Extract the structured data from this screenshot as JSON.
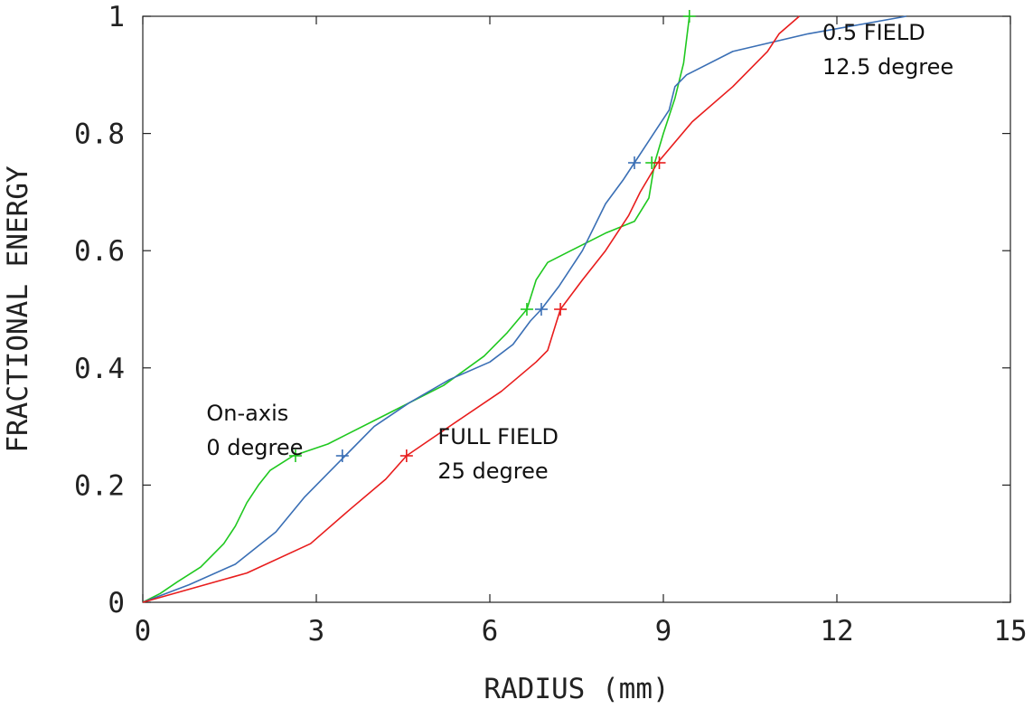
{
  "chart_data": {
    "type": "line",
    "title": "",
    "xlabel": "RADIUS (mm)",
    "ylabel": "FRACTIONAL ENERGY",
    "xlim": [
      0,
      15
    ],
    "ylim": [
      0,
      1
    ],
    "xticks": [
      0,
      3,
      6,
      9,
      12,
      15
    ],
    "xtick_labels": [
      "0",
      "3",
      "6",
      "9",
      "12",
      "15"
    ],
    "yticks": [
      0,
      0.2,
      0.4,
      0.6,
      0.8,
      1
    ],
    "ytick_labels": [
      "0",
      "0.2",
      "0.4",
      "0.6",
      "0.8",
      "1"
    ],
    "grid": false,
    "series": [
      {
        "color": "#1fc81f",
        "points": [
          [
            0,
            0
          ],
          [
            0.3,
            0.015
          ],
          [
            0.6,
            0.035
          ],
          [
            1,
            0.06
          ],
          [
            1.4,
            0.1
          ],
          [
            1.6,
            0.13
          ],
          [
            1.8,
            0.17
          ],
          [
            2.0,
            0.2
          ],
          [
            2.2,
            0.225
          ],
          [
            2.6,
            0.25
          ],
          [
            3.2,
            0.27
          ],
          [
            4.2,
            0.32
          ],
          [
            5.2,
            0.37
          ],
          [
            5.9,
            0.42
          ],
          [
            6.3,
            0.46
          ],
          [
            6.64,
            0.5
          ],
          [
            6.8,
            0.55
          ],
          [
            7.0,
            0.58
          ],
          [
            7.4,
            0.6
          ],
          [
            8.0,
            0.63
          ],
          [
            8.5,
            0.65
          ],
          [
            8.75,
            0.69
          ],
          [
            8.85,
            0.75
          ],
          [
            9.0,
            0.8
          ],
          [
            9.2,
            0.86
          ],
          [
            9.35,
            0.92
          ],
          [
            9.4,
            0.96
          ],
          [
            9.45,
            1.0
          ]
        ],
        "markers": [
          [
            2.64,
            0.25
          ],
          [
            6.64,
            0.5
          ],
          [
            8.8,
            0.75
          ],
          [
            9.45,
            1.0
          ]
        ]
      },
      {
        "color": "#3a6fb5",
        "points": [
          [
            0,
            0
          ],
          [
            0.8,
            0.03
          ],
          [
            1.6,
            0.065
          ],
          [
            2.3,
            0.12
          ],
          [
            2.8,
            0.18
          ],
          [
            3.2,
            0.22
          ],
          [
            3.5,
            0.25
          ],
          [
            4.0,
            0.3
          ],
          [
            4.6,
            0.34
          ],
          [
            5.3,
            0.38
          ],
          [
            6.0,
            0.41
          ],
          [
            6.4,
            0.44
          ],
          [
            6.7,
            0.48
          ],
          [
            6.89,
            0.5
          ],
          [
            7.2,
            0.54
          ],
          [
            7.6,
            0.6
          ],
          [
            8.0,
            0.68
          ],
          [
            8.3,
            0.72
          ],
          [
            8.5,
            0.75
          ],
          [
            8.7,
            0.78
          ],
          [
            8.9,
            0.81
          ],
          [
            9.1,
            0.84
          ],
          [
            9.2,
            0.88
          ],
          [
            9.4,
            0.9
          ],
          [
            10.2,
            0.94
          ],
          [
            11.5,
            0.97
          ],
          [
            13.2,
            1.0
          ]
        ],
        "markers": [
          [
            3.45,
            0.25
          ],
          [
            6.89,
            0.5
          ],
          [
            8.5,
            0.75
          ]
        ]
      },
      {
        "color": "#e81c1c",
        "points": [
          [
            0,
            0
          ],
          [
            1.8,
            0.05
          ],
          [
            2.9,
            0.1
          ],
          [
            3.6,
            0.16
          ],
          [
            4.2,
            0.21
          ],
          [
            4.56,
            0.25
          ],
          [
            5.3,
            0.3
          ],
          [
            6.2,
            0.36
          ],
          [
            6.8,
            0.41
          ],
          [
            7.0,
            0.43
          ],
          [
            7.22,
            0.5
          ],
          [
            7.6,
            0.55
          ],
          [
            8.0,
            0.6
          ],
          [
            8.4,
            0.66
          ],
          [
            8.6,
            0.7
          ],
          [
            8.9,
            0.75
          ],
          [
            9.5,
            0.82
          ],
          [
            10.2,
            0.88
          ],
          [
            10.8,
            0.94
          ],
          [
            11.0,
            0.97
          ],
          [
            11.35,
            1.0
          ]
        ],
        "markers": [
          [
            4.56,
            0.25
          ],
          [
            7.22,
            0.5
          ],
          [
            8.93,
            0.75
          ]
        ]
      }
    ],
    "annotations": [
      {
        "id": "on-axis",
        "lines": [
          "On-axis",
          "0 degree"
        ],
        "x": 1.1,
        "y": 0.31
      },
      {
        "id": "full-field",
        "lines": [
          "FULL FIELD",
          "25 degree"
        ],
        "x": 5.1,
        "y": 0.27
      },
      {
        "id": "half-field",
        "lines": [
          "0.5 FIELD",
          "12.5 degree"
        ],
        "x": 11.75,
        "y": 0.96
      }
    ]
  }
}
